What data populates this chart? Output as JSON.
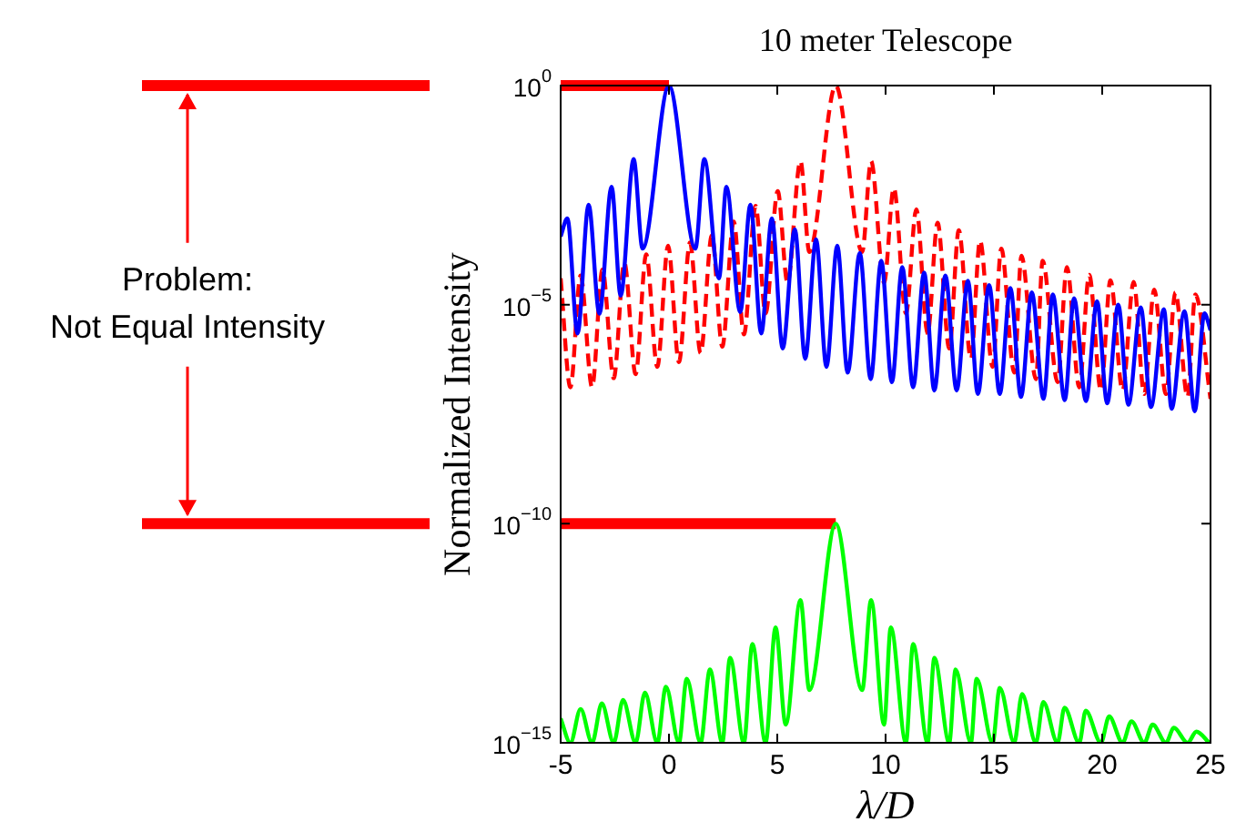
{
  "chart_data": {
    "type": "line",
    "title": "10 meter Telescope",
    "xlabel": "λ/D",
    "ylabel": "Normalized Intensity",
    "annotations": [
      "Problem:",
      "Not Equal Intensity"
    ],
    "log": true,
    "grid": false,
    "xlim": [
      -5,
      25
    ],
    "xticks": [
      -5,
      0,
      5,
      10,
      15,
      20,
      25
    ],
    "ylim": [
      1e-15,
      1
    ],
    "yticks": [
      {
        "value": 1,
        "label": "10$^{0}$"
      },
      {
        "value": 1e-05,
        "label": "10$^{−5}$"
      },
      {
        "value": 1e-10,
        "label": "10$^{−10}$"
      },
      {
        "value": 1e-15,
        "label": "10$^{−15}$"
      }
    ],
    "ref_lines": [
      {
        "axis": "y",
        "value": 1,
        "color": "#ff0000"
      },
      {
        "axis": "y",
        "value": 1e-10,
        "color": "#ff0000"
      }
    ],
    "series": [
      {
        "color": "#0000ff",
        "x": [
          -5,
          -4.69,
          -4.22,
          -3.71,
          -3.21,
          -2.65,
          -2.23,
          -1.63,
          -1.22,
          0,
          1.22,
          1.63,
          2.31,
          2.65,
          3.29,
          3.76,
          4.26,
          4.75,
          5.25,
          5.81,
          6.29,
          6.79,
          7.27,
          7.77,
          8.25,
          8.81,
          9.31,
          9.8,
          10.29,
          10.77,
          11.27,
          11.78,
          12.25,
          12.76,
          13.28,
          13.8,
          14.26,
          14.78,
          15.27,
          15.76,
          16.25,
          16.75,
          17.29,
          17.72,
          18.27,
          18.7,
          19.25,
          19.76,
          20.23,
          20.74,
          21.21,
          21.78,
          22.25,
          22.85,
          23.2,
          23.8,
          24.27,
          24.72,
          25
        ],
        "values": [
          0.00036,
          0.00093,
          2.2e-06,
          0.0019,
          6.2e-06,
          0.0049,
          1.6e-05,
          0.021,
          0.00019,
          1,
          0.00019,
          0.021,
          4e-05,
          0.0049,
          6.8e-06,
          0.0019,
          2.2e-06,
          0.00093,
          1e-06,
          0.00052,
          5.8e-07,
          0.00031,
          3.8e-07,
          0.00022,
          2.8e-07,
          0.00015,
          2e-07,
          0.0001,
          1.7e-07,
          7.2e-05,
          1.3e-07,
          5.4e-05,
          1.1e-07,
          4.6e-05,
          1.1e-07,
          3.5e-05,
          9.1e-08,
          2.8e-05,
          9.1e-08,
          2.4e-05,
          7.8e-08,
          1.9e-05,
          7.1e-08,
          1.7e-05,
          6.6e-08,
          1.4e-05,
          6.3e-08,
          1.2e-05,
          5.6e-08,
          1e-05,
          5.2e-08,
          8.7e-06,
          4.6e-08,
          7.9e-06,
          4.2e-08,
          7.1e-06,
          3.7e-08,
          6.3e-06,
          2.6e-06
        ]
      },
      {
        "color": "#ff0000",
        "line_style": "dashed",
        "x": [
          -5,
          -4.55,
          -4.08,
          -3.55,
          -3.07,
          -2.55,
          -2.06,
          -1.54,
          -1.05,
          -0.54,
          -0.04,
          0.46,
          0.97,
          1.46,
          1.98,
          2.46,
          2.99,
          3.46,
          4.0,
          4.46,
          5.02,
          5.47,
          6.07,
          6.48,
          7.7,
          8.92,
          9.33,
          9.93,
          10.38,
          10.94,
          11.42,
          11.94,
          12.4,
          12.94,
          13.38,
          13.94,
          14.36,
          14.94,
          15.34,
          15.94,
          16.27,
          16.94,
          17.25,
          17.94,
          18.37,
          18.94,
          19.4,
          19.94,
          20.38,
          20.94,
          21.45,
          21.94,
          22.4,
          22.94,
          23.38,
          23.94,
          24.3,
          25
        ],
        "values": [
          4e-05,
          1.3e-07,
          4.6e-05,
          1.3e-07,
          6.3e-05,
          2.1e-07,
          9.1e-05,
          2.6e-07,
          0.00014,
          3.8e-07,
          0.00022,
          4.9e-07,
          0.00026,
          7.8e-07,
          0.00038,
          1.1e-06,
          0.00079,
          2.1e-06,
          0.0018,
          6.3e-06,
          0.0039,
          3.2e-05,
          0.019,
          0.00016,
          1,
          0.00016,
          0.019,
          3.2e-05,
          0.0046,
          6.3e-06,
          0.0015,
          2.2e-06,
          0.00074,
          1e-06,
          0.0005,
          5.8e-07,
          0.00029,
          3.8e-07,
          0.00019,
          2.8e-07,
          0.00013,
          2e-07,
          0.0001,
          1.7e-07,
          7.2e-05,
          1.3e-07,
          4.8e-05,
          1.1e-07,
          3.6e-05,
          1.1e-07,
          3.3e-05,
          9.1e-08,
          2.2e-05,
          9.1e-08,
          1.9e-05,
          7.8e-08,
          1.7e-05,
          7.1e-08
        ]
      },
      {
        "color": "#00ff00",
        "x": [
          -5,
          -4.55,
          -4.08,
          -3.55,
          -3.1,
          -2.55,
          -2.12,
          -1.54,
          -1.11,
          -0.54,
          -0.14,
          0.46,
          0.82,
          1.46,
          1.89,
          2.46,
          2.82,
          3.46,
          3.85,
          4.46,
          4.92,
          5.39,
          6.07,
          6.48,
          7.7,
          8.92,
          9.33,
          9.93,
          10.24,
          10.94,
          11.27,
          11.94,
          12.25,
          12.94,
          13.23,
          13.94,
          14.2,
          14.94,
          15.27,
          15.94,
          16.3,
          16.94,
          17.28,
          17.94,
          18.26,
          18.94,
          19.24,
          19.94,
          20.32,
          20.94,
          21.35,
          21.94,
          22.33,
          22.94,
          23.31,
          23.94,
          24.35,
          24.94
        ],
        "values": [
          3.6e-15,
          1e-15,
          5.9e-15,
          1e-15,
          7.9e-15,
          1e-15,
          9.5e-15,
          1e-15,
          1.4e-14,
          1e-15,
          1.9e-14,
          1e-15,
          2.9e-14,
          1e-15,
          4.7e-14,
          1e-15,
          8.7e-14,
          1e-15,
          1.8e-13,
          1e-15,
          4.3e-13,
          2.6e-15,
          1.8e-12,
          1.6e-14,
          1e-10,
          1.6e-14,
          1.8e-12,
          2.6e-15,
          4.3e-13,
          1e-15,
          1.8e-13,
          1e-15,
          8.7e-14,
          1e-15,
          4.7e-14,
          1e-15,
          2.9e-14,
          1e-15,
          1.8e-14,
          1e-15,
          1.3e-14,
          1e-15,
          8.5e-15,
          1e-15,
          6.3e-15,
          1e-15,
          5.4e-15,
          1e-15,
          4e-15,
          1e-15,
          3.1e-15,
          1e-15,
          2.6e-15,
          1e-15,
          2.2e-15,
          1e-15,
          1.8e-15,
          1e-15
        ]
      }
    ]
  }
}
